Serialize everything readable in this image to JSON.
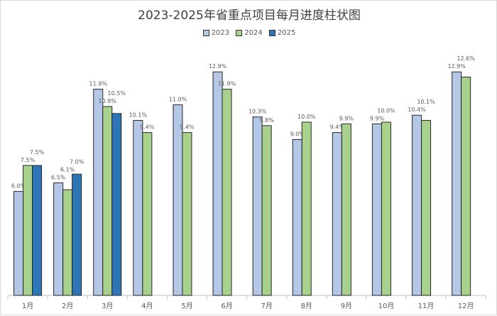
{
  "chart_data": {
    "type": "bar",
    "title": "2023-2025年省重点项目每月进度柱状图",
    "categories": [
      "1月",
      "2月",
      "3月",
      "4月",
      "5月",
      "6月",
      "7月",
      "8月",
      "9月",
      "10月",
      "11月",
      "12月"
    ],
    "series": [
      {
        "name": "2023",
        "color": "#b4c7e7",
        "values": [
          6.0,
          6.5,
          11.9,
          10.1,
          11.0,
          12.9,
          10.3,
          9.0,
          9.4,
          9.9,
          10.4,
          12.9
        ],
        "labels": [
          "6.0%",
          "6.5%",
          "11.9%",
          "10.1%",
          "11.0%",
          "12.9%",
          "10.3%",
          "9.0%",
          "9.4%",
          "9.9%",
          "10.4%",
          "12.9%"
        ]
      },
      {
        "name": "2024",
        "color": "#a9d18e",
        "values": [
          7.5,
          6.1,
          10.9,
          9.4,
          9.4,
          11.9,
          9.8,
          10.0,
          9.9,
          10.0,
          10.1,
          12.6
        ],
        "labels": [
          "7.5%",
          "6.1%",
          "10.9%",
          "9.4%",
          "9.4%",
          "11.9%",
          "9.8%",
          "10.0%",
          "9.9%",
          "10.0%",
          "10.1%",
          "12.6%"
        ]
      },
      {
        "name": "2025",
        "color": "#2e75b6",
        "values": [
          7.5,
          7.0,
          10.5,
          null,
          null,
          null,
          null,
          null,
          null,
          null,
          null,
          null
        ],
        "labels": [
          "7.5%",
          "7.0%",
          "10.5%",
          null,
          null,
          null,
          null,
          null,
          null,
          null,
          null,
          null
        ]
      }
    ],
    "ylim": [
      0,
      13.5
    ],
    "grid": false,
    "legend_position": "top"
  }
}
